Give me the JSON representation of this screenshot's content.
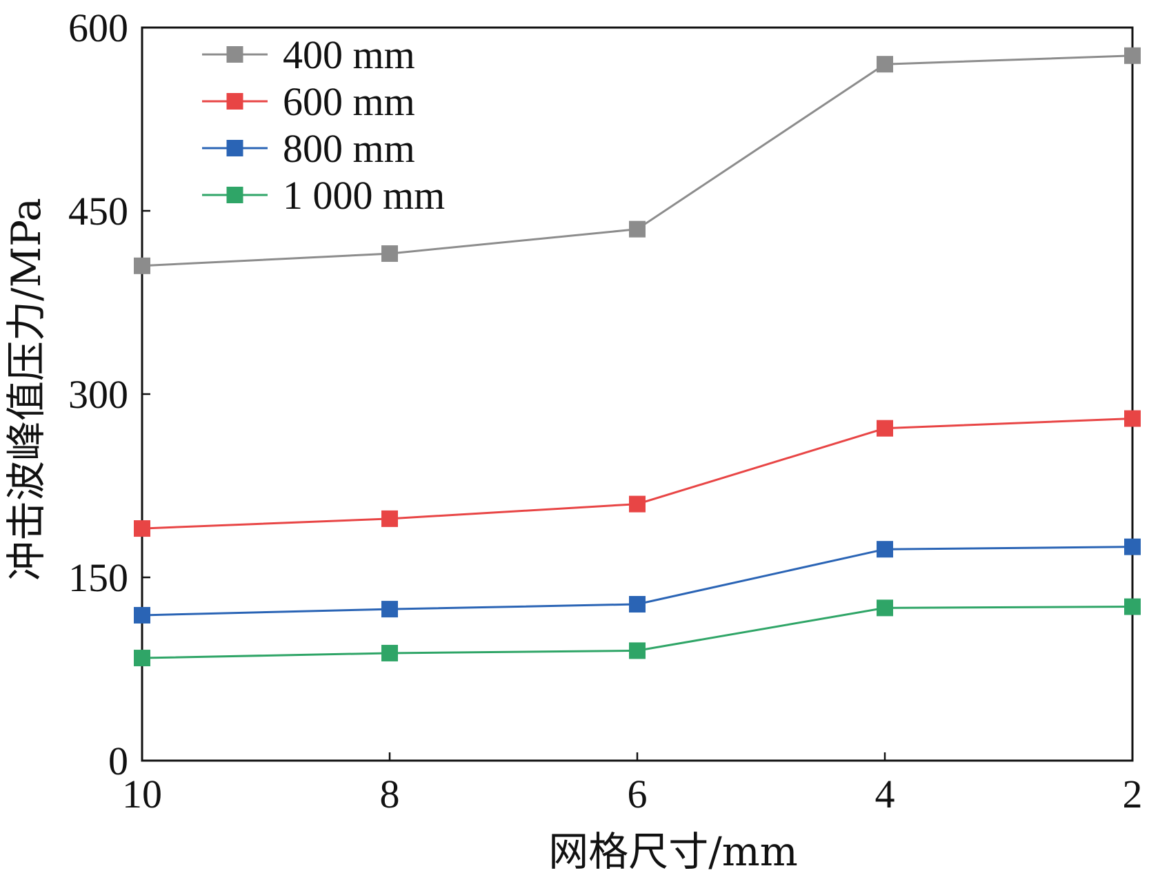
{
  "chart_data": {
    "type": "line",
    "x": [
      10,
      8,
      6,
      4,
      2
    ],
    "xlabel": "网格尺寸/mm",
    "ylabel": "冲击波峰值压力/MPa",
    "xlim": [
      10,
      2
    ],
    "ylim": [
      0,
      600
    ],
    "x_ticks": [
      "10",
      "8",
      "6",
      "4",
      "2"
    ],
    "y_ticks": [
      "0",
      "150",
      "300",
      "450",
      "600"
    ],
    "grid": false,
    "legend_position": "top-left",
    "series": [
      {
        "name": "400 mm",
        "color": "#8c8c8c",
        "marker": "square",
        "values": [
          405,
          415,
          435,
          570,
          577
        ]
      },
      {
        "name": "600 mm",
        "color": "#e84545",
        "marker": "square",
        "values": [
          190,
          198,
          210,
          272,
          280
        ]
      },
      {
        "name": "800 mm",
        "color": "#2a64b5",
        "marker": "square",
        "values": [
          119,
          124,
          128,
          173,
          175
        ]
      },
      {
        "name": "1 000 mm",
        "color": "#2fa567",
        "marker": "square",
        "values": [
          84,
          88,
          90,
          125,
          126
        ]
      }
    ]
  }
}
